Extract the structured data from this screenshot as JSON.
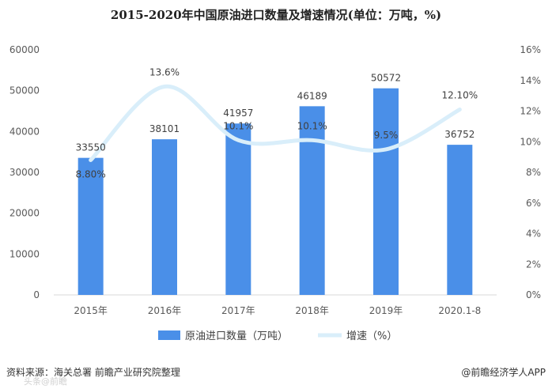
{
  "chart_data": {
    "type": "bar",
    "title": "2015-2020年中国原油进口数量及增速情况(单位：万吨，%)",
    "categories": [
      "2015年",
      "2016年",
      "2017年",
      "2018年",
      "2019年",
      "2020.1-8"
    ],
    "series": [
      {
        "name": "原油进口数量（万吨）",
        "type": "bar",
        "axis": "left",
        "values": [
          33550,
          38101,
          41957,
          46189,
          50572,
          36752
        ],
        "labels": [
          "33550",
          "38101",
          "41957",
          "46189",
          "50572",
          "36752"
        ],
        "color": "#4a8fe8"
      },
      {
        "name": "增速（%）",
        "type": "line",
        "axis": "right",
        "values": [
          8.8,
          13.6,
          10.1,
          10.1,
          9.5,
          12.1
        ],
        "labels": [
          "8.80%",
          "13.6%",
          "10.1%",
          "10.1%",
          "9.5%",
          "12.10%"
        ],
        "color": "#d9eefa"
      }
    ],
    "y_left": {
      "min": 0,
      "max": 60000,
      "ticks": [
        "0",
        "10000",
        "20000",
        "30000",
        "40000",
        "50000",
        "60000"
      ]
    },
    "y_right": {
      "min": 0,
      "max": 16,
      "ticks": [
        "0%",
        "2%",
        "4%",
        "6%",
        "8%",
        "10%",
        "12%",
        "14%",
        "16%"
      ]
    },
    "grid": false,
    "legend_position": "bottom"
  },
  "footer": {
    "source": "资料来源：海关总署 前瞻产业研究院整理",
    "brand": "@前瞻经济学人APP",
    "watermark": "头条@前瞻"
  }
}
